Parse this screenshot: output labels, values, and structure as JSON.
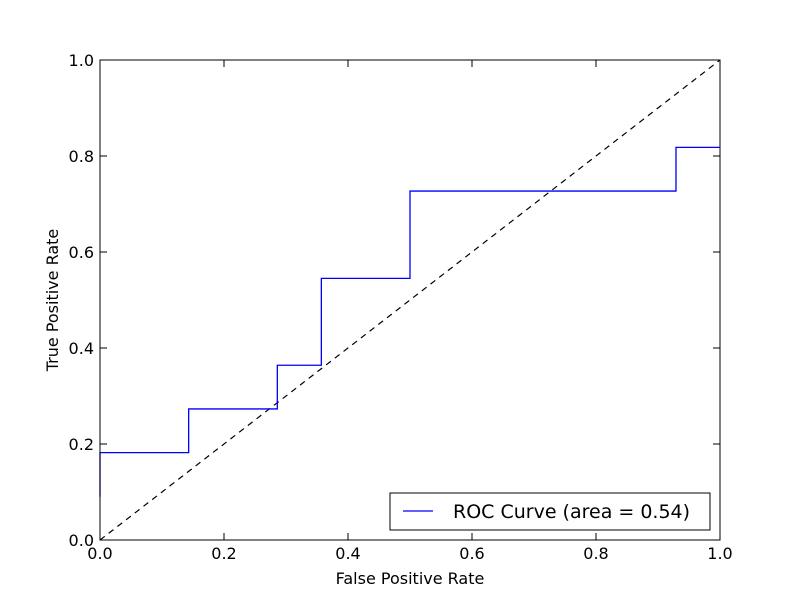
{
  "chart_data": {
    "type": "line",
    "title": "",
    "xlabel": "False Positive Rate",
    "ylabel": "True Positive Rate",
    "xlim": [
      0.0,
      1.0
    ],
    "ylim": [
      0.0,
      1.0
    ],
    "xticks": [
      "0.0",
      "0.2",
      "0.4",
      "0.6",
      "0.8",
      "1.0"
    ],
    "yticks": [
      "0.0",
      "0.2",
      "0.4",
      "0.6",
      "0.8",
      "1.0"
    ],
    "grid": false,
    "legend_position": "lower-right",
    "series": [
      {
        "name": "ROC Curve (area = 0.54)",
        "style": "solid",
        "color": "#0000ff",
        "x": [
          0.0,
          0.0,
          0.143,
          0.143,
          0.286,
          0.286,
          0.357,
          0.357,
          0.5,
          0.5,
          0.929,
          0.929,
          1.0
        ],
        "y": [
          0.09,
          0.182,
          0.182,
          0.273,
          0.273,
          0.364,
          0.364,
          0.545,
          0.545,
          0.727,
          0.727,
          0.818,
          0.818
        ]
      },
      {
        "style": "dashed",
        "color": "#000000",
        "x": [
          0.0,
          1.0
        ],
        "y": [
          0.0,
          1.0
        ]
      }
    ]
  }
}
